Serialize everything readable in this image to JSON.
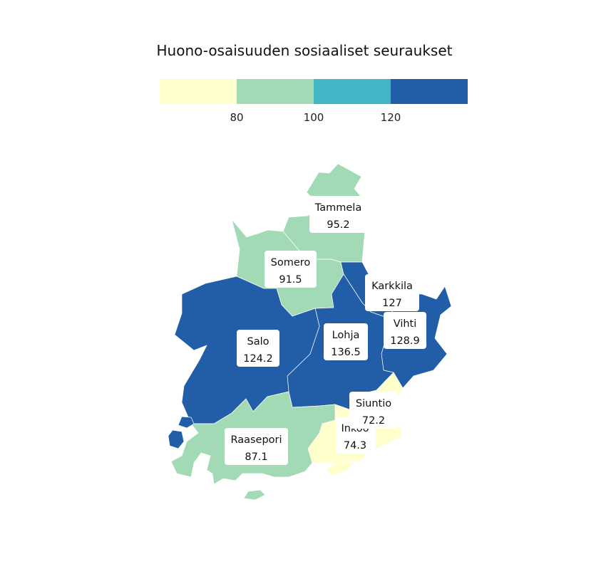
{
  "title": "Huono-osaisuuden sosiaaliset seuraukset",
  "legend": {
    "breaks": [
      "80",
      "100",
      "120"
    ],
    "bins": [
      {
        "color": "#ffffcc"
      },
      {
        "color": "#a1dab4"
      },
      {
        "color": "#41b6c4"
      },
      {
        "color": "#225ea8"
      }
    ]
  },
  "regions": [
    {
      "name": "Tammela",
      "value": "95.2",
      "color": "#a1dab4"
    },
    {
      "name": "Somero",
      "value": "91.5",
      "color": "#a1dab4"
    },
    {
      "name": "Karkkila",
      "value": "127",
      "color": "#225ea8"
    },
    {
      "name": "Vihti",
      "value": "128.9",
      "color": "#225ea8"
    },
    {
      "name": "Salo",
      "value": "124.2",
      "color": "#225ea8"
    },
    {
      "name": "Lohja",
      "value": "136.5",
      "color": "#225ea8"
    },
    {
      "name": "Siuntio",
      "value": "72.2",
      "color": "#ffffcc"
    },
    {
      "name": "Inkoo",
      "value": "74.3",
      "color": "#ffffcc"
    },
    {
      "name": "Raasepori",
      "value": "87.1",
      "color": "#a1dab4"
    }
  ]
}
